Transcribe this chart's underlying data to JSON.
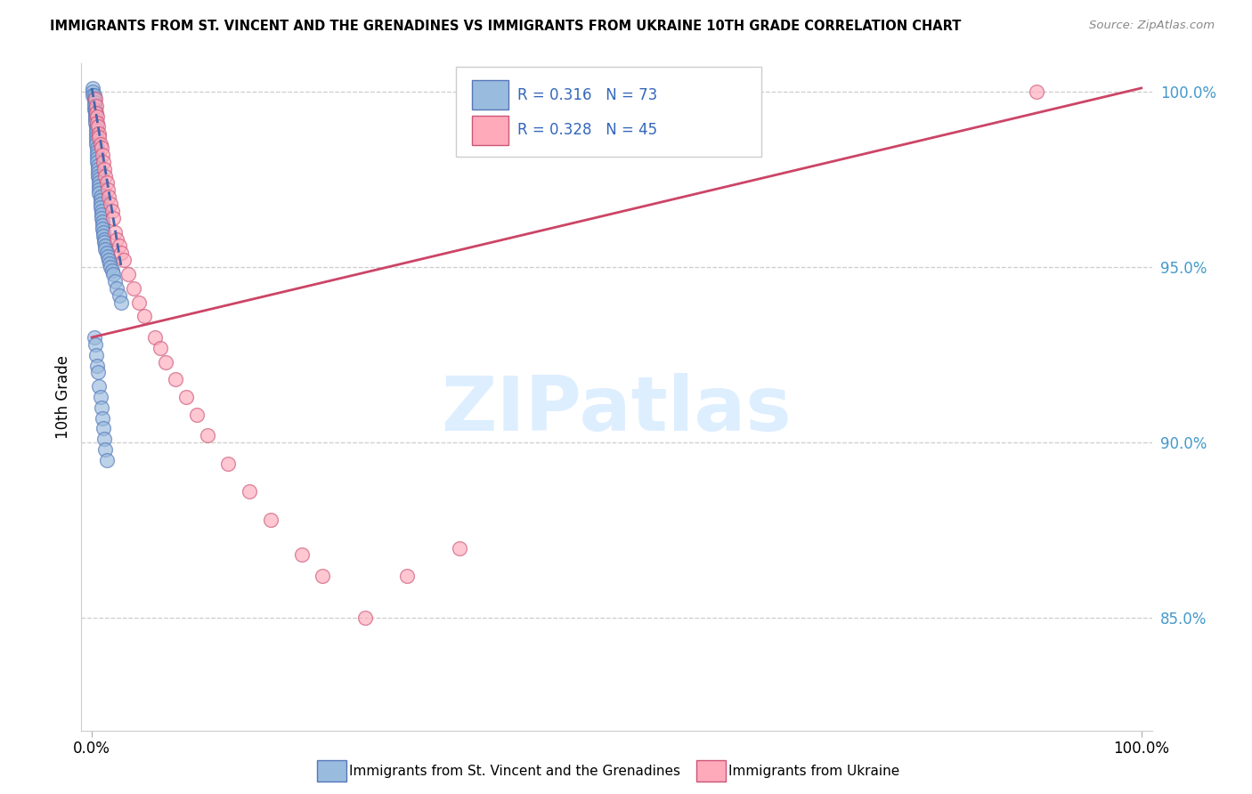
{
  "title": "IMMIGRANTS FROM ST. VINCENT AND THE GRENADINES VS IMMIGRANTS FROM UKRAINE 10TH GRADE CORRELATION CHART",
  "source": "Source: ZipAtlas.com",
  "ylabel": "10th Grade",
  "xlim": [
    -0.01,
    1.01
  ],
  "ylim": [
    0.818,
    1.008
  ],
  "yticks": [
    0.85,
    0.9,
    0.95,
    1.0
  ],
  "ytick_labels": [
    "85.0%",
    "90.0%",
    "95.0%",
    "100.0%"
  ],
  "xtick_labels": [
    "0.0%",
    "100.0%"
  ],
  "r_blue": 0.316,
  "n_blue": 73,
  "r_pink": 0.328,
  "n_pink": 45,
  "color_blue": "#99BBDD",
  "color_pink": "#FFAABB",
  "edge_blue": "#5577BB",
  "edge_pink": "#CC5577",
  "trend_blue": "#4466AA",
  "trend_pink": "#CC4466",
  "watermark": "ZIPatlas",
  "watermark_color": "#DDEEFF",
  "blue_x": [
    0.001,
    0.001,
    0.001,
    0.002,
    0.002,
    0.002,
    0.002,
    0.002,
    0.003,
    0.003,
    0.003,
    0.003,
    0.003,
    0.004,
    0.004,
    0.004,
    0.004,
    0.004,
    0.004,
    0.005,
    0.005,
    0.005,
    0.005,
    0.005,
    0.006,
    0.006,
    0.006,
    0.006,
    0.007,
    0.007,
    0.007,
    0.007,
    0.007,
    0.008,
    0.008,
    0.008,
    0.008,
    0.009,
    0.009,
    0.009,
    0.01,
    0.01,
    0.01,
    0.011,
    0.011,
    0.012,
    0.012,
    0.013,
    0.013,
    0.014,
    0.015,
    0.016,
    0.017,
    0.018,
    0.019,
    0.02,
    0.022,
    0.024,
    0.026,
    0.028,
    0.002,
    0.003,
    0.004,
    0.005,
    0.006,
    0.007,
    0.008,
    0.009,
    0.01,
    0.011,
    0.012,
    0.013,
    0.014
  ],
  "blue_y": [
    1.001,
    1.0,
    0.999,
    0.999,
    0.998,
    0.997,
    0.996,
    0.995,
    0.995,
    0.994,
    0.993,
    0.992,
    0.991,
    0.99,
    0.989,
    0.988,
    0.987,
    0.986,
    0.985,
    0.984,
    0.983,
    0.982,
    0.981,
    0.98,
    0.979,
    0.978,
    0.977,
    0.976,
    0.975,
    0.974,
    0.973,
    0.972,
    0.971,
    0.97,
    0.969,
    0.968,
    0.967,
    0.966,
    0.965,
    0.964,
    0.963,
    0.962,
    0.961,
    0.96,
    0.959,
    0.958,
    0.957,
    0.956,
    0.955,
    0.954,
    0.953,
    0.952,
    0.951,
    0.95,
    0.949,
    0.948,
    0.946,
    0.944,
    0.942,
    0.94,
    0.93,
    0.928,
    0.925,
    0.922,
    0.92,
    0.916,
    0.913,
    0.91,
    0.907,
    0.904,
    0.901,
    0.898,
    0.895
  ],
  "pink_x": [
    0.003,
    0.004,
    0.004,
    0.005,
    0.005,
    0.006,
    0.007,
    0.007,
    0.008,
    0.009,
    0.01,
    0.011,
    0.012,
    0.013,
    0.014,
    0.015,
    0.016,
    0.018,
    0.019,
    0.02,
    0.022,
    0.024,
    0.026,
    0.028,
    0.03,
    0.035,
    0.04,
    0.045,
    0.05,
    0.06,
    0.065,
    0.07,
    0.08,
    0.09,
    0.1,
    0.11,
    0.13,
    0.15,
    0.17,
    0.2,
    0.22,
    0.26,
    0.3,
    0.35,
    0.9
  ],
  "pink_y": [
    0.998,
    0.996,
    0.994,
    0.993,
    0.991,
    0.99,
    0.988,
    0.987,
    0.985,
    0.984,
    0.982,
    0.98,
    0.978,
    0.976,
    0.974,
    0.972,
    0.97,
    0.968,
    0.966,
    0.964,
    0.96,
    0.958,
    0.956,
    0.954,
    0.952,
    0.948,
    0.944,
    0.94,
    0.936,
    0.93,
    0.927,
    0.923,
    0.918,
    0.913,
    0.908,
    0.902,
    0.894,
    0.886,
    0.878,
    0.868,
    0.862,
    0.85,
    0.862,
    0.87,
    1.0
  ]
}
